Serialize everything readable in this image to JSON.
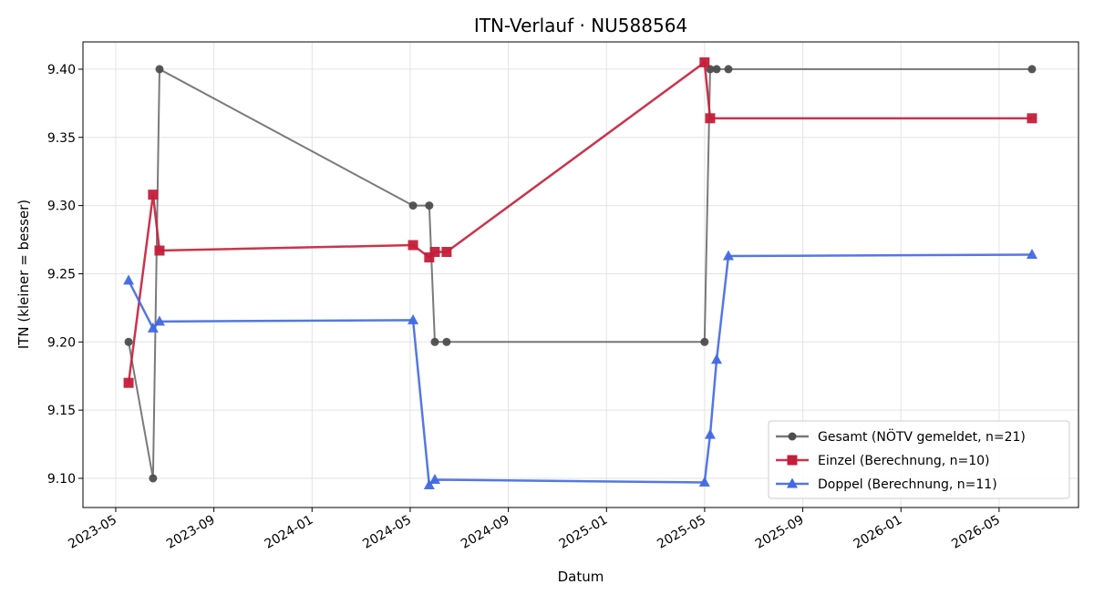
{
  "chart_data": {
    "type": "line",
    "title": "ITN-Verlauf · NU588564",
    "xlabel": "Datum",
    "ylabel": "ITN  (kleiner = besser)",
    "series": [
      {
        "name": "Gesamt (NÖTV gemeldet, n=21)",
        "color": "#4d4d4d",
        "marker": "circle",
        "x": [
          2023.377,
          2023.46,
          2023.482,
          2024.343,
          2024.398,
          2024.417,
          2024.457,
          2025.333,
          2025.352,
          2025.374,
          2025.414,
          2026.445
        ],
        "values": [
          9.2,
          9.1,
          9.4,
          9.3,
          9.3,
          9.2,
          9.2,
          9.2,
          9.4,
          9.4,
          9.4,
          9.4
        ]
      },
      {
        "name": "Einzel (Berechnung, n=10)",
        "color": "#c41e3a",
        "marker": "square",
        "x": [
          2023.377,
          2023.46,
          2023.482,
          2024.343,
          2024.398,
          2024.417,
          2024.457,
          2025.333,
          2025.352,
          2026.445
        ],
        "values": [
          9.17,
          9.308,
          9.267,
          9.271,
          9.262,
          9.266,
          9.266,
          9.405,
          9.364,
          9.364
        ]
      },
      {
        "name": "Doppel (Berechnung, n=11)",
        "color": "#4169e1",
        "marker": "triangle",
        "x": [
          2023.377,
          2023.46,
          2023.482,
          2024.343,
          2024.398,
          2024.417,
          2025.333,
          2025.352,
          2025.374,
          2025.414,
          2026.445
        ],
        "values": [
          9.245,
          9.21,
          9.215,
          9.216,
          9.095,
          9.099,
          9.097,
          9.132,
          9.187,
          9.263,
          9.264
        ]
      }
    ],
    "xlim": [
      2023.222,
      2026.603
    ],
    "xticks": [
      {
        "value": 2023.3333,
        "label": "2023-05"
      },
      {
        "value": 2023.6667,
        "label": "2023-09"
      },
      {
        "value": 2024.0,
        "label": "2024-01"
      },
      {
        "value": 2024.3333,
        "label": "2024-05"
      },
      {
        "value": 2024.6667,
        "label": "2024-09"
      },
      {
        "value": 2025.0,
        "label": "2025-01"
      },
      {
        "value": 2025.3333,
        "label": "2025-05"
      },
      {
        "value": 2025.6667,
        "label": "2025-09"
      },
      {
        "value": 2026.0,
        "label": "2026-01"
      },
      {
        "value": 2026.3333,
        "label": "2026-05"
      }
    ],
    "ylim": [
      9.0786,
      9.42
    ],
    "yticks": [
      {
        "value": 9.1,
        "label": "9.10"
      },
      {
        "value": 9.15,
        "label": "9.15"
      },
      {
        "value": 9.2,
        "label": "9.20"
      },
      {
        "value": 9.25,
        "label": "9.25"
      },
      {
        "value": 9.3,
        "label": "9.30"
      },
      {
        "value": 9.35,
        "label": "9.35"
      },
      {
        "value": 9.4,
        "label": "9.40"
      }
    ],
    "grid": true,
    "legend": "lower right"
  }
}
